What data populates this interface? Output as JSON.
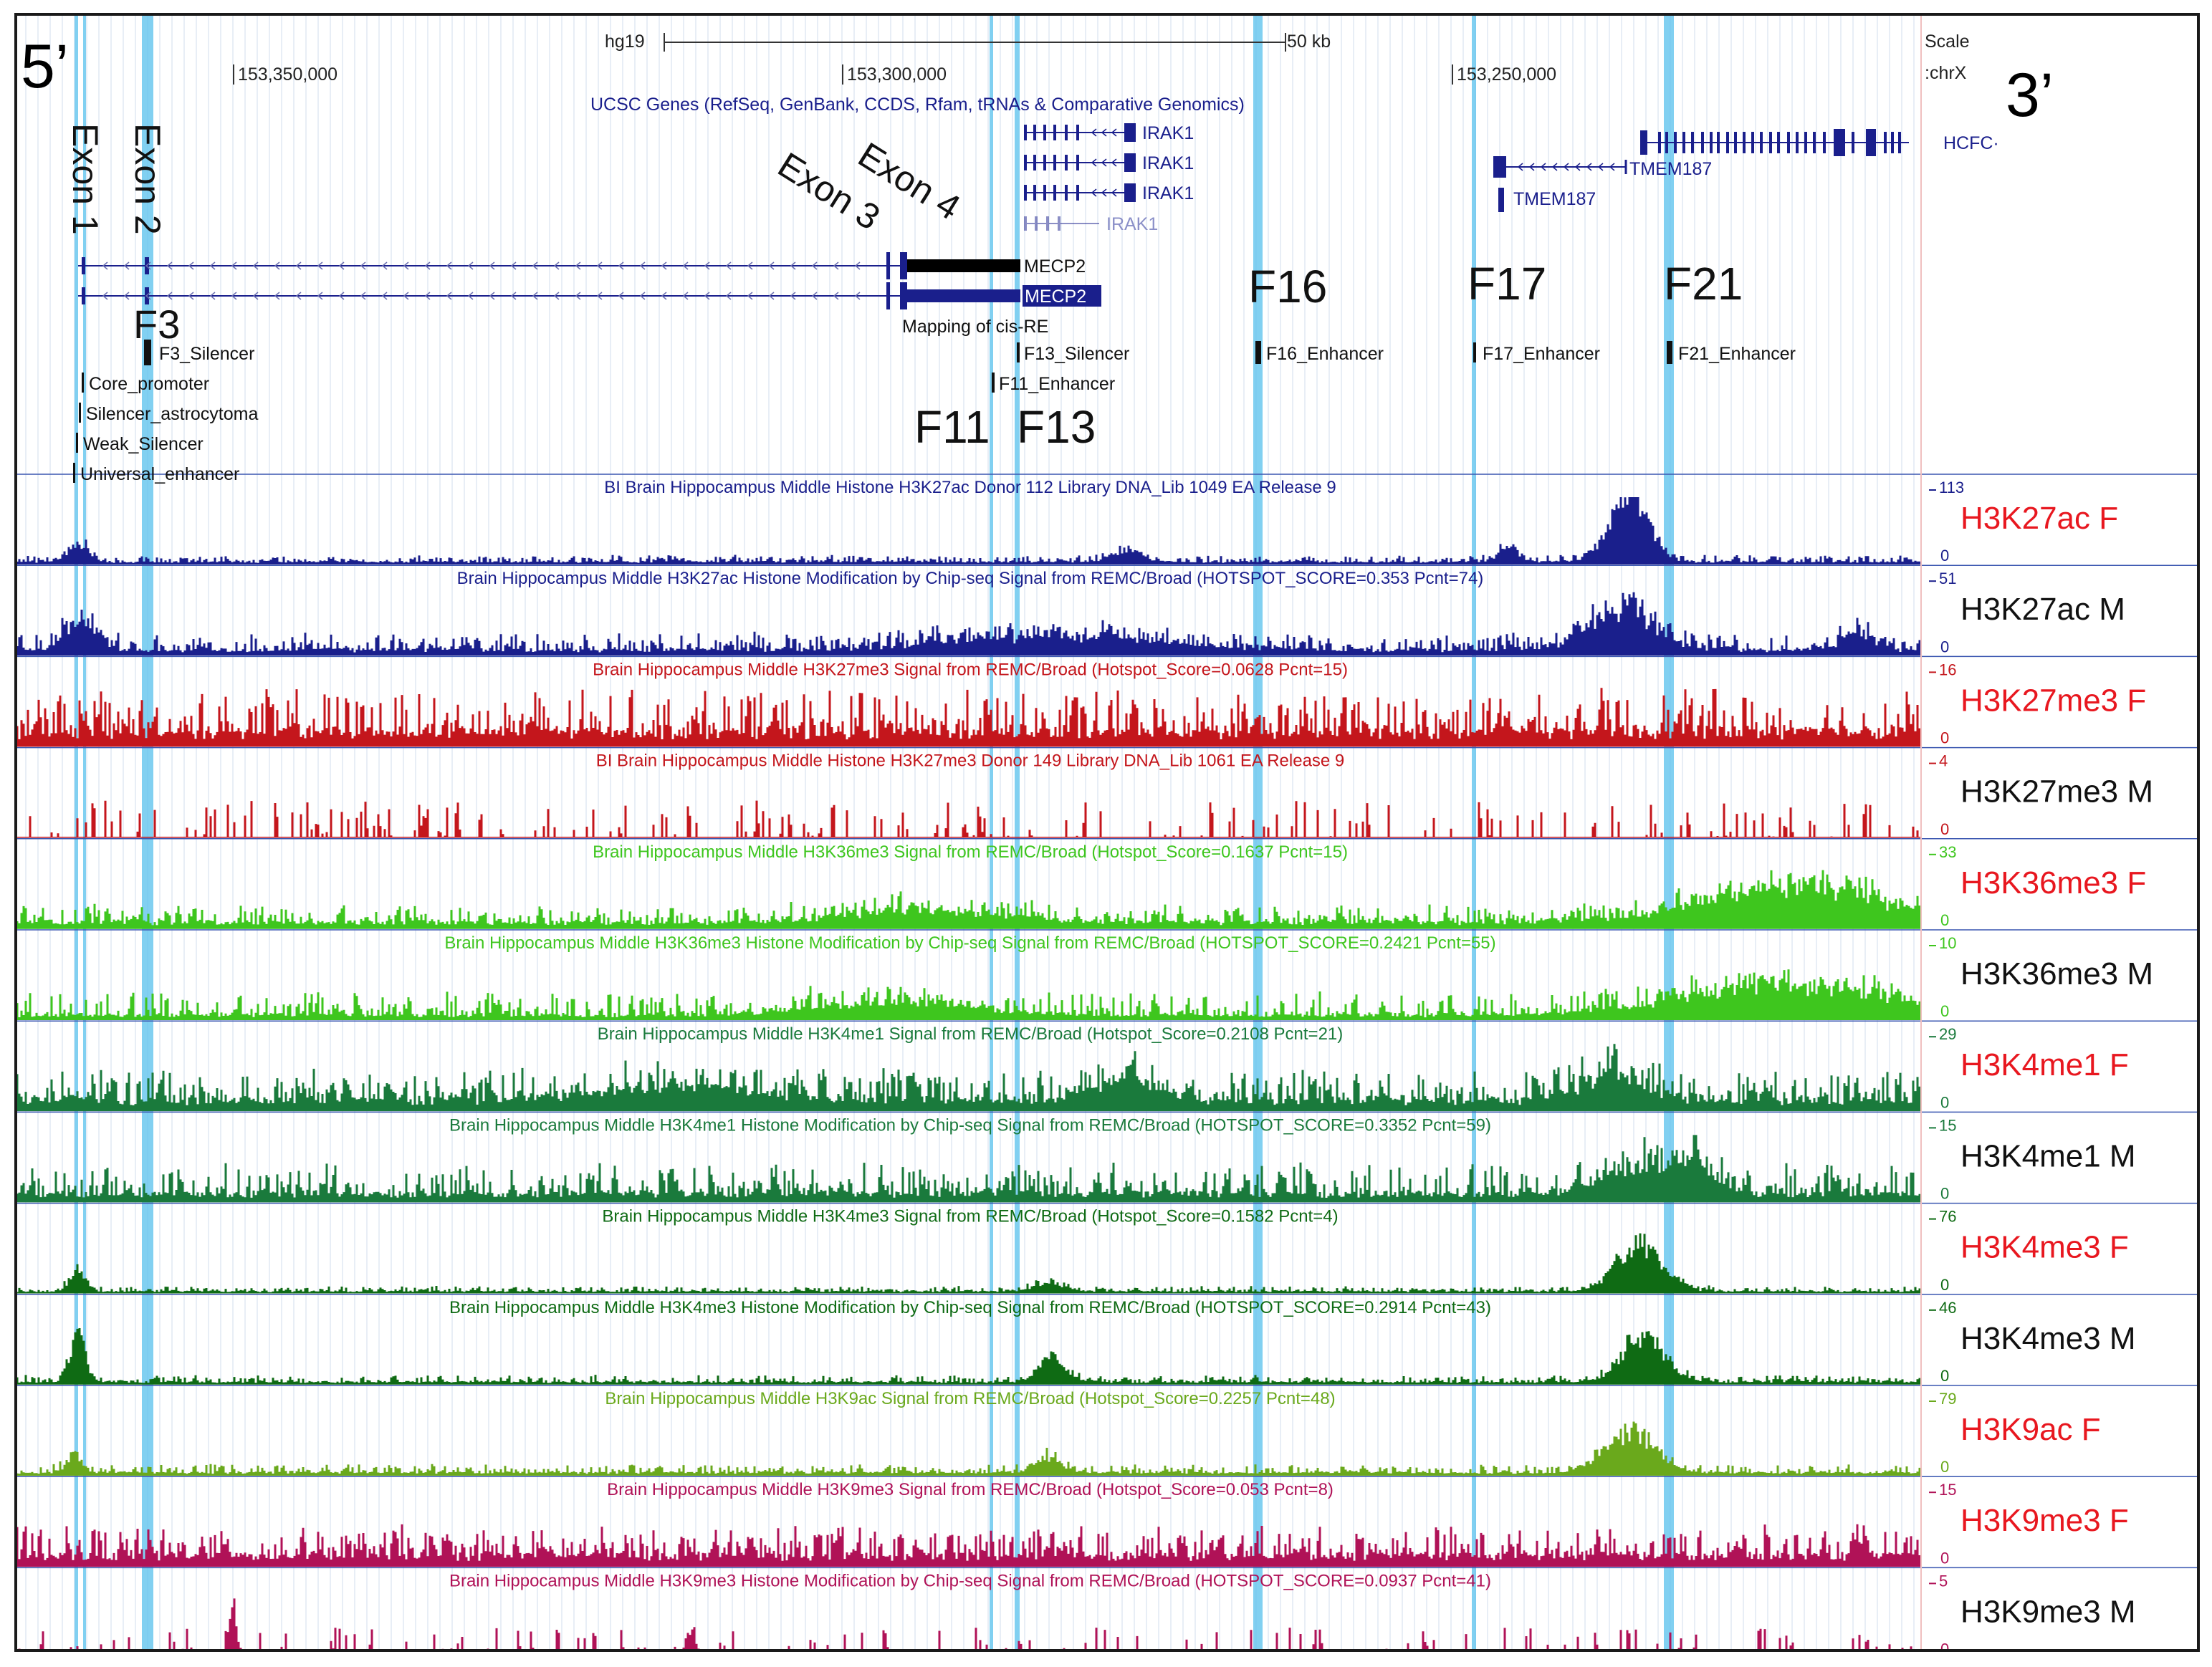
{
  "header": {
    "assembly": "hg19",
    "scale_bar_label": "50 kb",
    "scale_label": "Scale",
    "chrom_label": ":chrX",
    "five_prime": "5’",
    "three_prime": "3’",
    "coords": [
      "153,350,000",
      "153,300,000",
      "153,250,000"
    ]
  },
  "genes": {
    "track_title": "UCSC Genes (RefSeq, GenBank, CCDS, Rfam, tRNAs & Comparative Genomics)",
    "labels": {
      "irak1": [
        "IRAK1",
        "IRAK1",
        "IRAK1",
        "IRAK1"
      ],
      "tmem187": [
        "TMEM187",
        "TMEM187"
      ],
      "hcfc": "HCFC·",
      "mecp2_a": "MECP2",
      "mecp2_b": "MECP2"
    }
  },
  "exons": {
    "exon1": "Exon 1",
    "exon2": "Exon 2",
    "exon3": "Exon 3",
    "exon4": "Exon 4"
  },
  "cisre": {
    "track_title": "Mapping of cis-RE",
    "elements": [
      {
        "key": "f3",
        "label": "F3_Silencer"
      },
      {
        "key": "f13",
        "label": "F13_Silencer"
      },
      {
        "key": "f11",
        "label": "F11_Enhancer"
      },
      {
        "key": "f16",
        "label": "F16_Enhancer"
      },
      {
        "key": "f17",
        "label": "F17_Enhancer"
      },
      {
        "key": "f21",
        "label": "F21_Enhancer"
      },
      {
        "key": "core",
        "label": "Core_promoter"
      },
      {
        "key": "silastro",
        "label": "Silencer_astrocytoma"
      },
      {
        "key": "weak",
        "label": "Weak_Silencer"
      },
      {
        "key": "univ",
        "label": "Universal_enhancer"
      }
    ],
    "big_labels": [
      "F3",
      "F16",
      "F17",
      "F21",
      "F11",
      "F13"
    ]
  },
  "tracks": [
    {
      "title": "BI Brain Hippocampus Middle Histone H3K27ac Donor 112 Library DNA_Lib 1049 EA Release 9",
      "max": "113",
      "min": "0",
      "side_label": "H3K27ac F",
      "color": "#1a1f8c",
      "side_color": "#e8171f"
    },
    {
      "title": "Brain Hippocampus Middle H3K27ac Histone Modification by Chip-seq Signal from REMC/Broad (HOTSPOT_SCORE=0.353 Pcnt=74)",
      "max": "51",
      "min": "0",
      "side_label": "H3K27ac M",
      "color": "#1a1f8c",
      "side_color": "#111111"
    },
    {
      "title": "Brain Hippocampus Middle H3K27me3 Signal from REMC/Broad (Hotspot_Score=0.0628 Pcnt=15)",
      "max": "16",
      "min": "0",
      "side_label": "H3K27me3 F",
      "color": "#c4161c",
      "side_color": "#e8171f"
    },
    {
      "title": "BI Brain Hippocampus Middle Histone H3K27me3 Donor 149 Library DNA_Lib 1061 EA Release 9",
      "max": "4",
      "min": "0",
      "side_label": "H3K27me3 M",
      "color": "#c4161c",
      "side_color": "#111111"
    },
    {
      "title": "Brain Hippocampus Middle H3K36me3 Signal from REMC/Broad (Hotspot_Score=0.1637 Pcnt=15)",
      "max": "33",
      "min": "0",
      "side_label": "H3K36me3 F",
      "color": "#3ec61e",
      "side_color": "#e8171f"
    },
    {
      "title": "Brain Hippocampus Middle H3K36me3 Histone Modification by Chip-seq Signal from REMC/Broad (HOTSPOT_SCORE=0.2421 Pcnt=55)",
      "max": "10",
      "min": "0",
      "side_label": "H3K36me3 M",
      "color": "#3ec61e",
      "side_color": "#111111"
    },
    {
      "title": "Brain Hippocampus Middle H3K4me1 Signal from REMC/Broad (Hotspot_Score=0.2108 Pcnt=21)",
      "max": "29",
      "min": "0",
      "side_label": "H3K4me1 F",
      "color": "#1a7a3c",
      "side_color": "#e8171f"
    },
    {
      "title": "Brain Hippocampus Middle H3K4me1 Histone Modification by Chip-seq Signal from REMC/Broad (HOTSPOT_SCORE=0.3352 Pcnt=59)",
      "max": "15",
      "min": "0",
      "side_label": "H3K4me1 M",
      "color": "#1a7a3c",
      "side_color": "#111111"
    },
    {
      "title": "Brain Hippocampus Middle H3K4me3 Signal from REMC/Broad (Hotspot_Score=0.1582 Pcnt=4)",
      "max": "76",
      "min": "0",
      "side_label": "H3K4me3 F",
      "color": "#0f6b14",
      "side_color": "#e8171f"
    },
    {
      "title": "Brain Hippocampus Middle H3K4me3 Histone Modification by Chip-seq Signal from REMC/Broad (HOTSPOT_SCORE=0.2914 Pcnt=43)",
      "max": "46",
      "min": "0",
      "side_label": "H3K4me3 M",
      "color": "#0f6b14",
      "side_color": "#111111"
    },
    {
      "title": "Brain Hippocampus Middle H3K9ac Signal from REMC/Broad (Hotspot_Score=0.2257 Pcnt=48)",
      "max": "79",
      "min": "0",
      "side_label": "H3K9ac F",
      "color": "#6aa91c",
      "side_color": "#e8171f"
    },
    {
      "title": "Brain Hippocampus Middle H3K9me3 Signal from REMC/Broad (Hotspot_Score=0.053 Pcnt=8)",
      "max": "15",
      "min": "0",
      "side_label": "H3K9me3 F",
      "color": "#b01257",
      "side_color": "#e8171f"
    },
    {
      "title": "Brain Hippocampus Middle H3K9me3 Histone Modification by Chip-seq Signal from REMC/Broad (HOTSPOT_SCORE=0.0937 Pcnt=41)",
      "max": "5",
      "min": "0",
      "side_label": "H3K9me3 M",
      "color": "#b01257",
      "side_color": "#111111"
    }
  ]
}
